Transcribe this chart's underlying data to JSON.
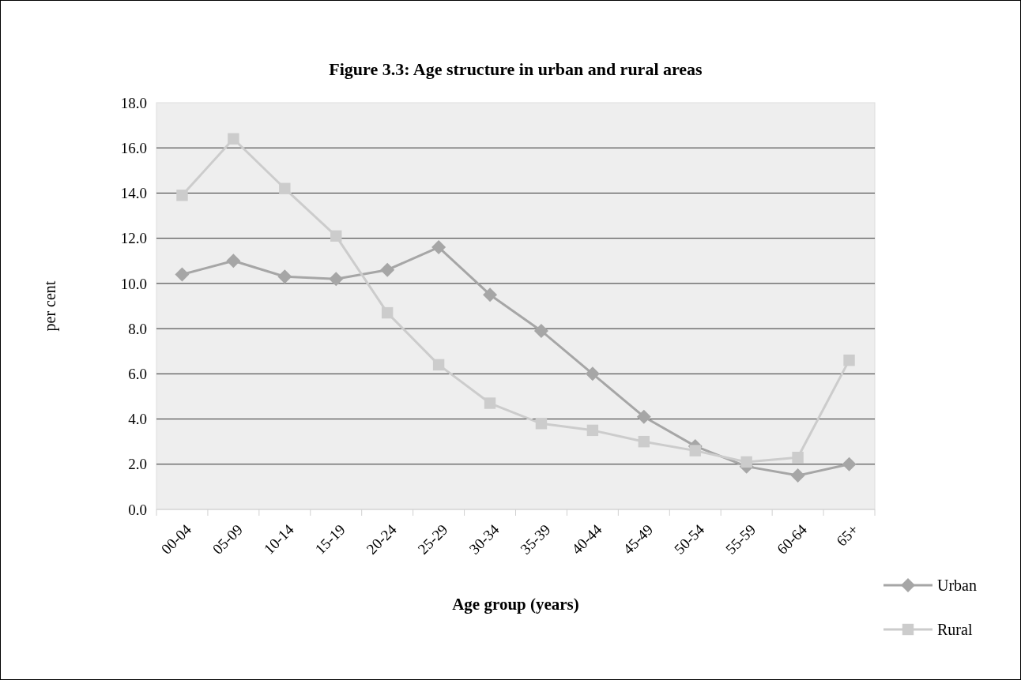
{
  "chart_data": {
    "type": "line",
    "title": "Figure 3.3: Age structure in urban and rural areas",
    "xlabel": "Age group (years)",
    "ylabel": "per cent",
    "categories": [
      "00-04",
      "05-09",
      "10-14",
      "15-19",
      "20-24",
      "25-29",
      "30-34",
      "35-39",
      "40-44",
      "45-49",
      "50-54",
      "55-59",
      "60-64",
      "65+"
    ],
    "series": [
      {
        "name": "Urban",
        "color": "#a6a6a6",
        "marker": "diamond",
        "values": [
          10.4,
          11.0,
          10.3,
          10.2,
          10.6,
          11.6,
          9.5,
          7.9,
          6.0,
          4.1,
          2.8,
          1.9,
          1.5,
          2.0
        ]
      },
      {
        "name": "Rural",
        "color": "#cccccc",
        "marker": "square",
        "values": [
          13.9,
          16.4,
          14.2,
          12.1,
          8.7,
          6.4,
          4.7,
          3.8,
          3.5,
          3.0,
          2.6,
          2.1,
          2.3,
          6.6
        ]
      }
    ],
    "ylim": [
      0,
      18
    ],
    "yticks": [
      {
        "value": 0,
        "label": "0.0"
      },
      {
        "value": 2,
        "label": "2.0"
      },
      {
        "value": 4,
        "label": "4.0"
      },
      {
        "value": 6,
        "label": "6.0"
      },
      {
        "value": 8,
        "label": "8.0"
      },
      {
        "value": 10,
        "label": "10.0"
      },
      {
        "value": 12,
        "label": "12.0"
      },
      {
        "value": 14,
        "label": "14.0"
      },
      {
        "value": 16,
        "label": "16.0"
      },
      {
        "value": 18,
        "label": "18.0"
      }
    ],
    "grid": "y",
    "legend": "right",
    "line_style": "solid"
  }
}
